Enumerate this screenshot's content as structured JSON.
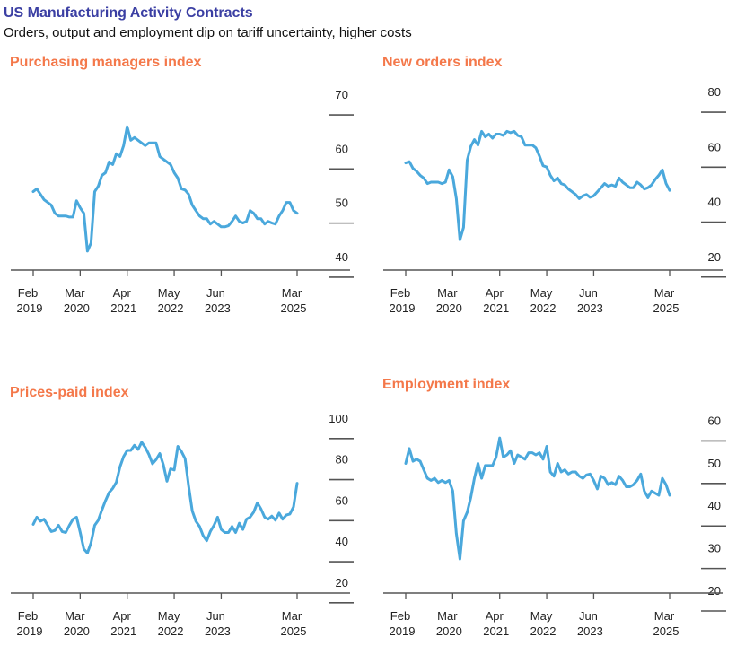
{
  "header": {
    "title": "US Manufacturing Activity Contracts",
    "subtitle": "Orders, output and employment dip on tariff uncertainty, higher costs"
  },
  "style": {
    "line_color": "#4aa8dc",
    "title_color": "#3b3fa3",
    "panel_title_color": "#f4784a",
    "axis_color": "#555555"
  },
  "x_ticks": [
    {
      "month": "Feb",
      "year": "2019",
      "t": 0
    },
    {
      "month": "Mar",
      "year": "2020",
      "t": 13
    },
    {
      "month": "Apr",
      "year": "2021",
      "t": 26
    },
    {
      "month": "May",
      "year": "2022",
      "t": 39
    },
    {
      "month": "Jun",
      "year": "2023",
      "t": 52
    },
    {
      "month": "Mar",
      "year": "2025",
      "t": 73
    }
  ],
  "chart_data": [
    {
      "type": "line",
      "title": "Purchasing managers index",
      "x_start": "Feb 2019",
      "x_end": "Mar 2025",
      "x_unit": "month",
      "ylim": [
        38,
        71
      ],
      "yticks": [
        40,
        50,
        60,
        70
      ],
      "values": [
        52.5,
        53.0,
        52.0,
        51.0,
        50.5,
        50.0,
        48.5,
        48.0,
        48.0,
        48.0,
        47.8,
        47.8,
        50.8,
        49.5,
        48.5,
        41.5,
        43.0,
        52.5,
        53.5,
        55.5,
        56.0,
        58.0,
        57.5,
        59.5,
        59.0,
        61.0,
        64.5,
        62.0,
        62.5,
        62.0,
        61.5,
        61.0,
        61.5,
        61.5,
        61.5,
        59.0,
        58.5,
        58.0,
        57.5,
        56.0,
        55.0,
        53.0,
        52.8,
        52.0,
        50.0,
        49.0,
        48.0,
        47.5,
        47.5,
        46.5,
        47.0,
        46.5,
        46.0,
        46.0,
        46.2,
        47.0,
        48.0,
        47.0,
        46.7,
        47.0,
        49.0,
        48.5,
        47.5,
        47.5,
        46.5,
        47.0,
        46.7,
        46.5,
        48.0,
        49.0,
        50.5,
        50.5,
        49.0,
        48.5
      ]
    },
    {
      "type": "line",
      "title": "New orders index",
      "x_start": "Feb 2019",
      "x_end": "Mar 2025",
      "x_unit": "month",
      "ylim": [
        16,
        81
      ],
      "yticks": [
        20,
        40,
        60,
        80
      ],
      "values": [
        55.0,
        55.5,
        53.0,
        52.0,
        50.5,
        49.5,
        47.5,
        48.0,
        48.0,
        48.0,
        47.5,
        48.0,
        52.5,
        50.0,
        42.0,
        27.0,
        31.5,
        56.0,
        61.0,
        63.5,
        61.5,
        66.5,
        64.5,
        65.5,
        64.0,
        65.5,
        65.5,
        65.0,
        66.5,
        66.0,
        66.5,
        65.0,
        64.5,
        61.5,
        61.5,
        61.5,
        60.5,
        57.5,
        54.0,
        53.5,
        50.5,
        48.5,
        49.5,
        47.5,
        47.0,
        45.5,
        44.5,
        43.5,
        42.0,
        43.0,
        43.5,
        42.5,
        43.0,
        44.5,
        46.0,
        47.5,
        46.5,
        47.0,
        46.5,
        49.5,
        48.0,
        47.0,
        46.0,
        46.0,
        48.0,
        47.0,
        45.5,
        46.0,
        47.0,
        49.0,
        50.5,
        52.5,
        47.5,
        45.0
      ]
    },
    {
      "type": "line",
      "title": "Prices-paid index",
      "x_start": "Feb 2019",
      "x_end": "Mar 2025",
      "x_unit": "month",
      "ylim": [
        16,
        103
      ],
      "yticks": [
        20,
        40,
        60,
        80,
        100
      ],
      "values": [
        49.5,
        53.0,
        51.0,
        52.0,
        49.0,
        46.0,
        46.5,
        49.0,
        46.0,
        45.5,
        49.0,
        52.0,
        53.0,
        45.5,
        37.5,
        35.5,
        40.5,
        49.0,
        51.5,
        56.5,
        61.0,
        65.0,
        67.0,
        70.0,
        77.5,
        82.5,
        85.5,
        85.5,
        88.0,
        86.0,
        89.5,
        87.0,
        83.5,
        79.0,
        81.0,
        84.0,
        78.5,
        70.5,
        76.5,
        76.0,
        87.5,
        85.0,
        81.5,
        68.0,
        56.0,
        51.0,
        48.5,
        44.0,
        41.5,
        46.0,
        49.0,
        53.0,
        47.0,
        45.5,
        45.5,
        48.5,
        45.5,
        50.0,
        47.0,
        52.0,
        53.0,
        55.5,
        60.0,
        57.0,
        53.0,
        52.0,
        53.5,
        51.5,
        55.0,
        52.0,
        54.0,
        54.5,
        58.0,
        69.5
      ]
    },
    {
      "type": "line",
      "title": "Employment index",
      "x_start": "Feb 2019",
      "x_end": "Mar 2025",
      "x_unit": "month",
      "ylim": [
        20,
        62
      ],
      "yticks": [
        20,
        30,
        40,
        50,
        60
      ],
      "values": [
        50.5,
        54.0,
        51.0,
        51.5,
        51.0,
        49.0,
        47.0,
        46.5,
        47.0,
        46.0,
        46.5,
        46.0,
        46.5,
        44.0,
        34.0,
        28.0,
        37.0,
        39.0,
        42.5,
        47.0,
        50.5,
        47.0,
        50.0,
        50.0,
        50.0,
        52.0,
        56.5,
        52.0,
        52.5,
        53.5,
        50.5,
        52.5,
        52.0,
        51.5,
        53.0,
        53.0,
        52.5,
        53.0,
        51.5,
        54.5,
        48.5,
        47.5,
        50.5,
        48.5,
        49.0,
        48.0,
        48.5,
        48.5,
        47.5,
        47.0,
        47.8,
        48.0,
        46.5,
        44.5,
        47.5,
        47.0,
        45.5,
        46.0,
        45.5,
        47.5,
        46.5,
        45.0,
        45.0,
        45.5,
        46.5,
        48.0,
        44.0,
        42.5,
        44.0,
        43.5,
        43.0,
        47.0,
        45.5,
        43.0
      ]
    }
  ]
}
